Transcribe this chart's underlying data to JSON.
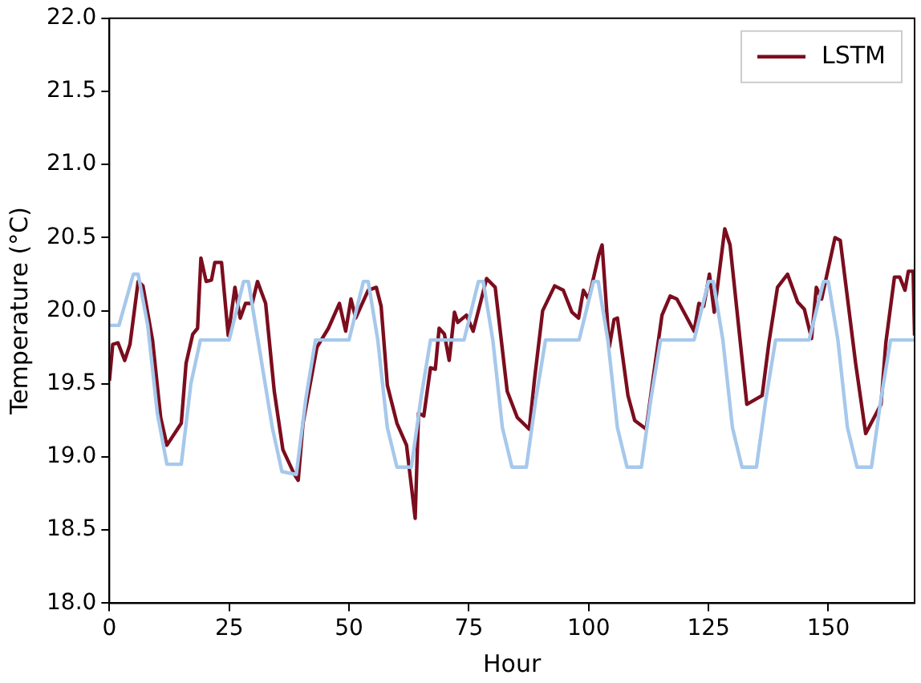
{
  "chart_data": {
    "type": "line",
    "xlabel": "Hour",
    "ylabel": "Temperature (°C)",
    "xlim": [
      0,
      168
    ],
    "ylim": [
      18,
      22
    ],
    "xticks": [
      0,
      25,
      50,
      75,
      100,
      125,
      150
    ],
    "yticks": [
      {
        "value": 18,
        "label": "18.0"
      },
      {
        "value": 18.5,
        "label": "18.5"
      },
      {
        "value": 19,
        "label": "19.0"
      },
      {
        "value": 19.5,
        "label": "19.5"
      },
      {
        "value": 20,
        "label": "20.0"
      },
      {
        "value": 20.5,
        "label": "20.5"
      },
      {
        "value": 21,
        "label": "21.0"
      },
      {
        "value": 21.5,
        "label": "21.5"
      },
      {
        "value": 22,
        "label": "22.0"
      }
    ],
    "grid": false,
    "legend": "top right",
    "marker": "none",
    "line_style": "solid",
    "series": [
      {
        "color": "#a6c8ec",
        "x": [
          0,
          2,
          5,
          6,
          8,
          10,
          12,
          15,
          17,
          19,
          25,
          28,
          29,
          31,
          34,
          36,
          39,
          41,
          43,
          50,
          53,
          54,
          56,
          58,
          60,
          63,
          65,
          67,
          74,
          77,
          78,
          80,
          82,
          84,
          87,
          89,
          91,
          98,
          101,
          102,
          104,
          106,
          108,
          111,
          113,
          115,
          122,
          125,
          126,
          128,
          130,
          132,
          135,
          137,
          139,
          146,
          149,
          150,
          152,
          154,
          156,
          159,
          161,
          163,
          168
        ],
        "values": [
          19.9,
          19.9,
          20.25,
          20.25,
          19.9,
          19.3,
          18.95,
          18.95,
          19.5,
          19.8,
          19.8,
          20.2,
          20.2,
          19.8,
          19.2,
          18.9,
          18.88,
          19.4,
          19.8,
          19.8,
          20.2,
          20.2,
          19.8,
          19.2,
          18.93,
          18.93,
          19.4,
          19.8,
          19.8,
          20.2,
          20.2,
          19.8,
          19.2,
          18.93,
          18.93,
          19.4,
          19.8,
          19.8,
          20.2,
          20.2,
          19.8,
          19.2,
          18.93,
          18.93,
          19.4,
          19.8,
          19.8,
          20.2,
          20.2,
          19.8,
          19.2,
          18.93,
          18.93,
          19.4,
          19.8,
          19.8,
          20.2,
          20.2,
          19.8,
          19.2,
          18.93,
          18.93,
          19.4,
          19.8,
          19.8
        ]
      },
      {
        "name": "LSTM",
        "color": "#7b0d1e",
        "x": [
          0,
          0.7,
          1.8,
          3.2,
          4.3,
          6,
          7,
          9,
          10.7,
          12,
          15,
          16,
          17.4,
          18.4,
          19.1,
          20.2,
          21.3,
          22,
          23.4,
          24.8,
          26.2,
          27.3,
          28.4,
          29.8,
          30.9,
          32.6,
          34.4,
          36.2,
          38.6,
          39.4,
          40.4,
          43.3,
          45.7,
          48,
          49.3,
          50.4,
          51.4,
          54,
          55.7,
          56.7,
          58,
          60,
          62,
          63.8,
          64.5,
          65.6,
          67,
          68,
          68.8,
          69.9,
          70.9,
          72,
          72.7,
          74.5,
          75.9,
          78.7,
          80.5,
          83,
          85.1,
          87.6,
          88.7,
          90.4,
          92.9,
          94.7,
          96.5,
          97.9,
          98.9,
          100,
          102.1,
          102.8,
          104.3,
          105.3,
          106,
          108.2,
          109.6,
          112,
          113.5,
          115.3,
          117,
          118.4,
          120.2,
          122,
          123,
          124,
          125.2,
          126.2,
          128.4,
          129.5,
          133,
          136.2,
          137.6,
          139.4,
          141.5,
          143.6,
          145,
          146.5,
          147.5,
          148.6,
          151.4,
          152.5,
          155.7,
          157.8,
          161,
          162,
          163.8,
          164.9,
          166,
          166.7,
          167.7,
          168
        ],
        "values": [
          19.52,
          19.77,
          19.78,
          19.66,
          19.77,
          20.2,
          20.17,
          19.8,
          19.27,
          19.08,
          19.23,
          19.64,
          19.84,
          19.88,
          20.36,
          20.2,
          20.21,
          20.33,
          20.33,
          19.83,
          20.16,
          19.95,
          20.05,
          20.05,
          20.2,
          20.05,
          19.45,
          19.05,
          18.88,
          18.84,
          19.23,
          19.75,
          19.88,
          20.05,
          19.86,
          20.08,
          19.95,
          20.14,
          20.16,
          20.03,
          19.49,
          19.23,
          19.08,
          18.58,
          19.3,
          19.28,
          19.61,
          19.6,
          19.88,
          19.84,
          19.66,
          19.99,
          19.92,
          19.97,
          19.86,
          20.22,
          20.16,
          19.45,
          19.27,
          19.19,
          19.53,
          20.0,
          20.17,
          20.14,
          19.99,
          19.95,
          20.14,
          20.08,
          20.38,
          20.45,
          19.75,
          19.94,
          19.95,
          19.42,
          19.25,
          19.19,
          19.55,
          19.97,
          20.1,
          20.08,
          19.97,
          19.86,
          20.05,
          20.03,
          20.25,
          19.99,
          20.56,
          20.45,
          19.36,
          19.42,
          19.78,
          20.16,
          20.25,
          20.06,
          20.01,
          19.81,
          20.16,
          20.08,
          20.5,
          20.48,
          19.64,
          19.16,
          19.36,
          19.78,
          20.23,
          20.23,
          20.14,
          20.27,
          20.27,
          19.83
        ]
      }
    ]
  }
}
